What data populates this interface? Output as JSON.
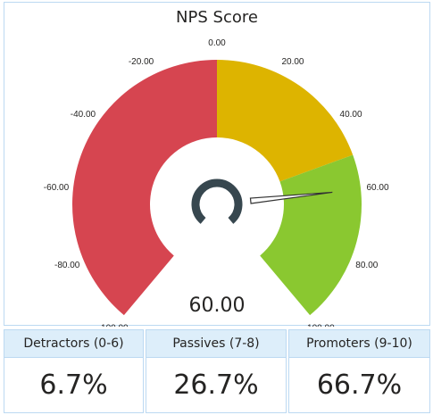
{
  "gauge": {
    "title": "NPS Score",
    "value": 60,
    "value_label": "60.00",
    "min": -100,
    "max": 100,
    "ticks": [
      "-100.00",
      "-80.00",
      "-60.00",
      "-40.00",
      "-20.00",
      "0.00",
      "20.00",
      "40.00",
      "60.00",
      "80.00",
      "100.00"
    ],
    "bands": [
      {
        "from": -100,
        "to": 0,
        "color": "#d64550"
      },
      {
        "from": 0,
        "to": 50,
        "color": "#ddb400"
      },
      {
        "from": 50,
        "to": 100,
        "color": "#8ac830"
      }
    ],
    "needle_color": "#333333",
    "hub_color": "#37474f"
  },
  "cards": [
    {
      "label": "Detractors (0-6)",
      "value": "6.7%"
    },
    {
      "label": "Passives (7-8)",
      "value": "26.7%"
    },
    {
      "label": "Promoters (9-10)",
      "value": "66.7%"
    }
  ]
}
